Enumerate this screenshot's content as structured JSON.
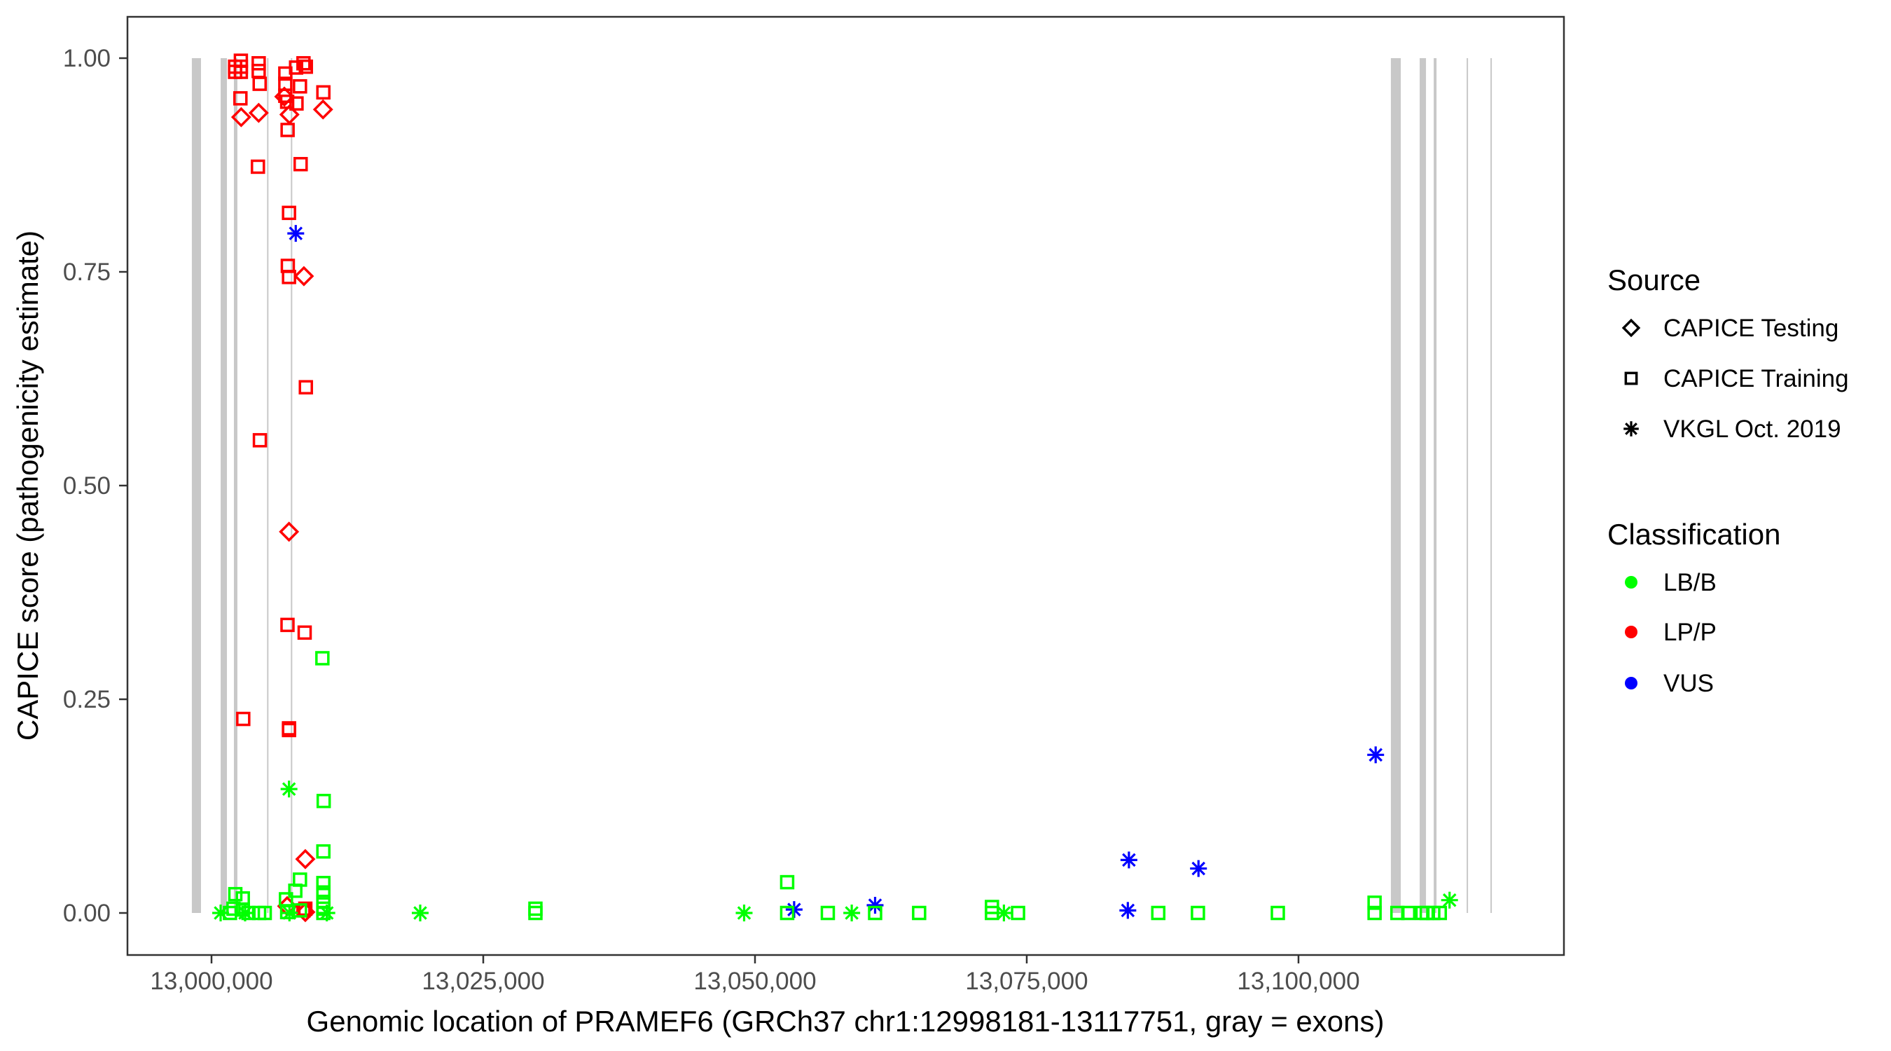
{
  "chart_data": {
    "type": "scatter",
    "xlabel": "Genomic location of PRAMEF6 (GRCh37 chr1:12998181-13117751, gray = exons)",
    "ylabel": "CAPICE score (pathogenicity estimate)",
    "xlim": [
      12992000,
      13121000
    ],
    "ylim": [
      -0.045,
      1.045
    ],
    "x_ticks": [
      13000000,
      13025000,
      13050000,
      13075000,
      13100000
    ],
    "x_tick_labels": [
      "13,000,000",
      "13,025,000",
      "13,050,000",
      "13,075,000",
      "13,100,000"
    ],
    "y_ticks": [
      0,
      0.25,
      0.5,
      0.75,
      1.0
    ],
    "y_tick_labels": [
      "0.00",
      "0.25",
      "0.50",
      "0.75",
      "1.00"
    ],
    "grid": false,
    "legend_position": "right",
    "exon_color": "#c8c8c8",
    "exons": [
      [
        12998190,
        12999030
      ],
      [
        13000840,
        13001420
      ],
      [
        13002060,
        13002380
      ],
      [
        13005110,
        13005170
      ],
      [
        13007300,
        13007360
      ],
      [
        13108500,
        13109410
      ],
      [
        13111150,
        13111730
      ],
      [
        13112440,
        13112700
      ],
      [
        13115470,
        13115530
      ],
      [
        13117660,
        13117720
      ]
    ],
    "legend_source": {
      "title": "Source",
      "items": [
        {
          "label": "CAPICE Testing",
          "shape": "diamond"
        },
        {
          "label": "CAPICE Training",
          "shape": "square"
        },
        {
          "label": "VKGL Oct. 2019",
          "shape": "asterisk"
        }
      ]
    },
    "legend_classification": {
      "title": "Classification",
      "items": [
        {
          "label": "LB/B",
          "color": "#00ff00"
        },
        {
          "label": "LP/P",
          "color": "#ff0000"
        },
        {
          "label": "VUS",
          "color": "#0000ff"
        }
      ]
    },
    "series": [
      {
        "source": "CAPICE Training",
        "class": "LP/P",
        "points": [
          [
            13002700,
            0.997
          ],
          [
            13002170,
            0.99
          ],
          [
            13002700,
            0.99
          ],
          [
            13002170,
            0.984
          ],
          [
            13002700,
            0.984
          ],
          [
            13004340,
            0.994
          ],
          [
            13004340,
            0.985
          ],
          [
            13004430,
            0.97
          ],
          [
            13002660,
            0.953
          ],
          [
            13006790,
            0.982
          ],
          [
            13006790,
            0.97
          ],
          [
            13006790,
            0.956
          ],
          [
            13006960,
            0.949
          ],
          [
            13007780,
            0.989
          ],
          [
            13008460,
            0.994
          ],
          [
            13008680,
            0.99
          ],
          [
            13008140,
            0.967
          ],
          [
            13007820,
            0.947
          ],
          [
            13010290,
            0.96
          ],
          [
            13007000,
            0.916
          ],
          [
            13004270,
            0.873
          ],
          [
            13008200,
            0.876
          ],
          [
            13007130,
            0.819
          ],
          [
            13007020,
            0.757
          ],
          [
            13007130,
            0.744
          ],
          [
            13008680,
            0.615
          ],
          [
            13004450,
            0.553
          ],
          [
            13006990,
            0.337
          ],
          [
            13008570,
            0.328
          ],
          [
            13002920,
            0.227
          ],
          [
            13007130,
            0.216
          ],
          [
            13007130,
            0.214
          ],
          [
            13008630,
            0.005
          ],
          [
            13008460,
            0.003
          ]
        ]
      },
      {
        "source": "CAPICE Testing",
        "class": "LP/P",
        "points": [
          [
            13002730,
            0.931
          ],
          [
            13004340,
            0.936
          ],
          [
            13006700,
            0.955
          ],
          [
            13007170,
            0.934
          ],
          [
            13010260,
            0.94
          ],
          [
            13008500,
            0.745
          ],
          [
            13007130,
            0.446
          ],
          [
            13008630,
            0.063
          ],
          [
            13006960,
            0.008
          ],
          [
            13008630,
            0.001
          ]
        ]
      },
      {
        "source": "VKGL Oct. 2019",
        "class": "VUS",
        "points": [
          [
            13007750,
            0.795
          ],
          [
            13053600,
            0.004
          ],
          [
            13061050,
            0.009
          ],
          [
            13084400,
            0.062
          ],
          [
            13084300,
            0.003
          ],
          [
            13090800,
            0.052
          ],
          [
            13107100,
            0.185
          ]
        ]
      },
      {
        "source": "VKGL Oct. 2019",
        "class": "LB/B",
        "points": [
          [
            13000840,
            0.0
          ],
          [
            13003090,
            0.0
          ],
          [
            13007170,
            0.0
          ],
          [
            13010610,
            0.0
          ],
          [
            13007130,
            0.145
          ],
          [
            13019200,
            0.0
          ],
          [
            13049000,
            0.0
          ],
          [
            13058900,
            0.0
          ],
          [
            13072900,
            0.0
          ],
          [
            13113900,
            0.015
          ]
        ]
      },
      {
        "source": "CAPICE Training",
        "class": "LB/B",
        "points": [
          [
            13002190,
            0.022
          ],
          [
            13002880,
            0.017
          ],
          [
            13002020,
            0.005
          ],
          [
            13002880,
            0.004
          ],
          [
            13001700,
            0.0
          ],
          [
            13003400,
            0.0
          ],
          [
            13004380,
            0.0
          ],
          [
            13004900,
            0.0
          ],
          [
            13006850,
            0.016
          ],
          [
            13007710,
            0.026
          ],
          [
            13008140,
            0.039
          ],
          [
            13010290,
            0.072
          ],
          [
            13010290,
            0.035
          ],
          [
            13010290,
            0.024
          ],
          [
            13010290,
            0.013
          ],
          [
            13010290,
            0.005
          ],
          [
            13010290,
            0.0
          ],
          [
            13006960,
            0.001
          ],
          [
            13008140,
            0.003
          ],
          [
            13010200,
            0.298
          ],
          [
            13010320,
            0.131
          ],
          [
            13029800,
            0.005
          ],
          [
            13029800,
            0.0
          ],
          [
            13052960,
            0.036
          ],
          [
            13052960,
            0.0
          ],
          [
            13056700,
            0.0
          ],
          [
            13061050,
            0.0
          ],
          [
            13065100,
            0.0
          ],
          [
            13071800,
            0.007
          ],
          [
            13071800,
            0.0
          ],
          [
            13074200,
            0.0
          ],
          [
            13087100,
            0.0
          ],
          [
            13090750,
            0.0
          ],
          [
            13098100,
            0.0
          ],
          [
            13107000,
            0.012
          ],
          [
            13107000,
            0.0
          ],
          [
            13109100,
            0.0
          ],
          [
            13110100,
            0.0
          ],
          [
            13111400,
            0.0
          ],
          [
            13111800,
            0.0
          ],
          [
            13112400,
            0.0
          ],
          [
            13113000,
            0.0
          ]
        ]
      }
    ]
  }
}
